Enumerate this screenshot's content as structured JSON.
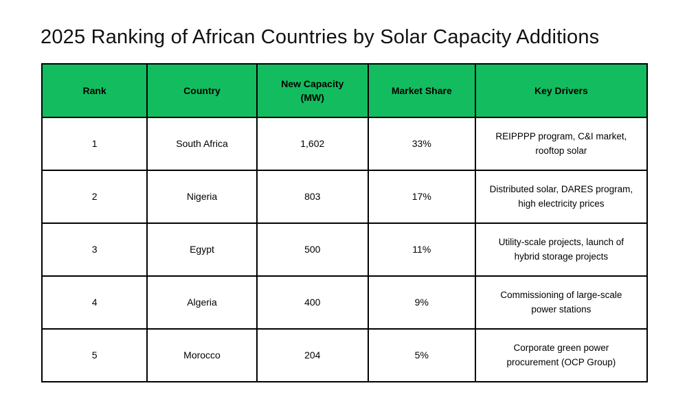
{
  "title": "2025 Ranking of African Countries by Solar Capacity Additions",
  "colors": {
    "header_bg": "#13bd5f",
    "border": "#000000",
    "background": "#ffffff",
    "text": "#000000"
  },
  "table": {
    "headers": [
      "Rank",
      "Country",
      "New Capacity (MW)",
      "Market Share",
      "Key Drivers"
    ],
    "rows": [
      {
        "rank": "1",
        "country": "South Africa",
        "new_capacity_mw": "1,602",
        "market_share": "33%",
        "key_drivers": "REIPPPP program, C&I market, rooftop solar"
      },
      {
        "rank": "2",
        "country": "Nigeria",
        "new_capacity_mw": "803",
        "market_share": "17%",
        "key_drivers": "Distributed solar, DARES program, high electricity prices"
      },
      {
        "rank": "3",
        "country": "Egypt",
        "new_capacity_mw": "500",
        "market_share": "11%",
        "key_drivers": "Utility-scale projects, launch of hybrid storage projects"
      },
      {
        "rank": "4",
        "country": "Algeria",
        "new_capacity_mw": "400",
        "market_share": "9%",
        "key_drivers": "Commissioning of large-scale power stations"
      },
      {
        "rank": "5",
        "country": "Morocco",
        "new_capacity_mw": "204",
        "market_share": "5%",
        "key_drivers": "Corporate green power procurement (OCP Group)"
      }
    ]
  },
  "chart_data": {
    "type": "table",
    "title": "2025 Ranking of African Countries by Solar Capacity Additions",
    "columns": [
      "Rank",
      "Country",
      "New Capacity (MW)",
      "Market Share",
      "Key Drivers"
    ],
    "rows": [
      [
        1,
        "South Africa",
        1602,
        "33%",
        "REIPPPP program, C&I market, rooftop solar"
      ],
      [
        2,
        "Nigeria",
        803,
        "17%",
        "Distributed solar, DARES program, high electricity prices"
      ],
      [
        3,
        "Egypt",
        500,
        "11%",
        "Utility-scale projects, launch of hybrid storage projects"
      ],
      [
        4,
        "Algeria",
        400,
        "9%",
        "Commissioning of large-scale power stations"
      ],
      [
        5,
        "Morocco",
        204,
        "5%",
        "Corporate green power procurement (OCP Group)"
      ]
    ]
  }
}
